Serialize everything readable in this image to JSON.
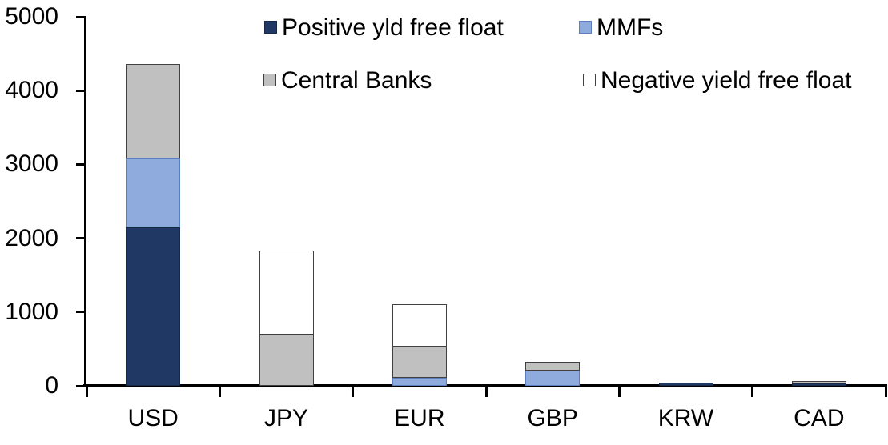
{
  "chart_data": {
    "type": "bar",
    "stacked": true,
    "title": "",
    "xlabel": "",
    "ylabel": "",
    "grid": false,
    "legend_position": "top",
    "categories": [
      "USD",
      "JPY",
      "EUR",
      "GBP",
      "KRW",
      "CAD"
    ],
    "series": [
      {
        "name": "Positive yld free float",
        "color": "#1F3864",
        "border": "#17294A",
        "values": [
          2150,
          0,
          0,
          0,
          45,
          35
        ]
      },
      {
        "name": "MMFs",
        "color": "#8FAADC",
        "border": "#5B7EBE",
        "values": [
          930,
          0,
          105,
          210,
          0,
          0
        ]
      },
      {
        "name": "Central Banks",
        "color": "#C0C0C0",
        "border": "#404040",
        "values": [
          1280,
          695,
          425,
          115,
          0,
          30
        ]
      },
      {
        "name": "Negative yield free float",
        "color": "#FFFFFF",
        "border": "#404040",
        "values": [
          0,
          1140,
          580,
          0,
          0,
          0
        ]
      }
    ],
    "totals": [
      4360,
      1835,
      1110,
      325,
      45,
      65
    ],
    "ylim": [
      0,
      5000
    ],
    "y_ticks": [
      0,
      1000,
      2000,
      3000,
      4000,
      5000
    ],
    "y_tick_labels": [
      "0",
      "1000",
      "2000",
      "3000",
      "4000",
      "5000"
    ],
    "axis_color": "#000000"
  }
}
